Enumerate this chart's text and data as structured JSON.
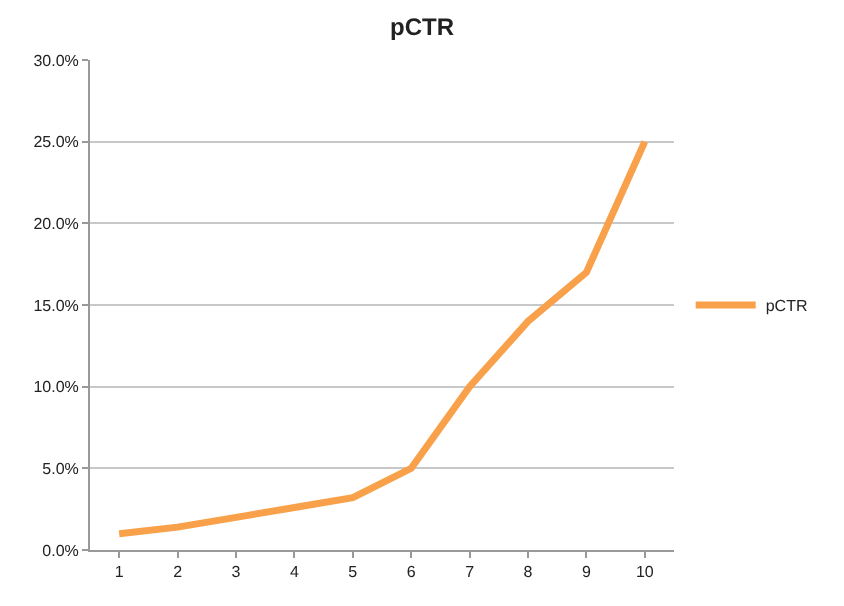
{
  "chart_data": {
    "type": "line",
    "title": "pCTR",
    "categories": [
      "1",
      "2",
      "3",
      "4",
      "5",
      "6",
      "7",
      "8",
      "9",
      "10"
    ],
    "series": [
      {
        "name": "pCTR",
        "color": "#f9a04b",
        "values": [
          1.0,
          1.4,
          2.0,
          2.6,
          3.2,
          5.0,
          10.0,
          14.0,
          17.0,
          25.0
        ]
      }
    ],
    "ylim": [
      0,
      30
    ],
    "yticks": [
      {
        "value": 0,
        "label": "0.0%"
      },
      {
        "value": 5,
        "label": "5.0%"
      },
      {
        "value": 10,
        "label": "10.0%"
      },
      {
        "value": 15,
        "label": "15.0%"
      },
      {
        "value": 20,
        "label": "20.0%"
      },
      {
        "value": 25,
        "label": "25.0%"
      },
      {
        "value": 30,
        "label": "30.0%"
      }
    ],
    "grid": "y",
    "legend": "right",
    "marker": "none",
    "line_style": "solid"
  }
}
